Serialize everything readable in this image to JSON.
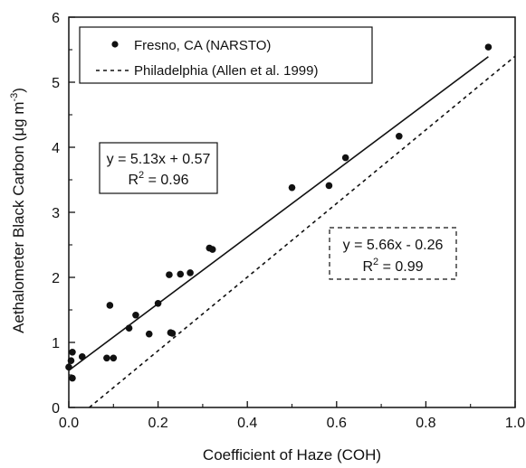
{
  "chart_data": {
    "type": "scatter",
    "xlabel": "Coefficient of Haze (COH)",
    "ylabel": {
      "main": "Aethalometer Black Carbon (μg m",
      "sup": "-3",
      "close": ")"
    },
    "xlim": [
      0.0,
      1.0
    ],
    "ylim": [
      0,
      6
    ],
    "xticks": [
      "0.0",
      "0.2",
      "0.4",
      "0.6",
      "0.8",
      "1.0"
    ],
    "xtick_values": [
      0.0,
      0.2,
      0.4,
      0.6,
      0.8,
      1.0
    ],
    "yticks": [
      "0",
      "1",
      "2",
      "3",
      "4",
      "5",
      "6"
    ],
    "ytick_values": [
      0,
      1,
      2,
      3,
      4,
      5,
      6
    ],
    "grid": false,
    "legend_position": "top-left",
    "legend": [
      {
        "label": "Fresno, CA (NARSTO)",
        "marker": "dot"
      },
      {
        "label": "Philadelphia (Allen et al. 1999)",
        "marker": "dashed-line"
      }
    ],
    "series": [
      {
        "name": "Fresno, CA (NARSTO)",
        "points": [
          [
            0.0,
            0.62
          ],
          [
            0.005,
            0.72
          ],
          [
            0.008,
            0.85
          ],
          [
            0.008,
            0.45
          ],
          [
            0.03,
            0.78
          ],
          [
            0.085,
            0.76
          ],
          [
            0.092,
            1.57
          ],
          [
            0.1,
            0.76
          ],
          [
            0.135,
            1.22
          ],
          [
            0.15,
            1.42
          ],
          [
            0.18,
            1.13
          ],
          [
            0.2,
            1.6
          ],
          [
            0.225,
            2.04
          ],
          [
            0.228,
            1.15
          ],
          [
            0.232,
            1.14
          ],
          [
            0.25,
            2.05
          ],
          [
            0.272,
            2.07
          ],
          [
            0.315,
            2.45
          ],
          [
            0.322,
            2.43
          ],
          [
            0.5,
            3.38
          ],
          [
            0.583,
            3.41
          ],
          [
            0.62,
            3.84
          ],
          [
            0.74,
            4.17
          ],
          [
            0.94,
            5.54
          ]
        ]
      }
    ],
    "fits": [
      {
        "name": "Fresno, CA (NARSTO)",
        "slope": 5.13,
        "intercept": 0.57,
        "x_range": [
          0.0,
          0.94
        ],
        "style": "solid",
        "equation": "y = 5.13x + 0.57",
        "r2_prefix": "R",
        "r2_sup": "2",
        "r2_value": " = 0.96"
      },
      {
        "name": "Philadelphia (Allen et al. 1999)",
        "slope": 5.66,
        "intercept": -0.26,
        "x_range": [
          0.046,
          1.0
        ],
        "style": "dashed",
        "equation": "y = 5.66x - 0.26",
        "r2_prefix": "R",
        "r2_sup": "2",
        "r2_value": " = 0.99"
      }
    ]
  }
}
